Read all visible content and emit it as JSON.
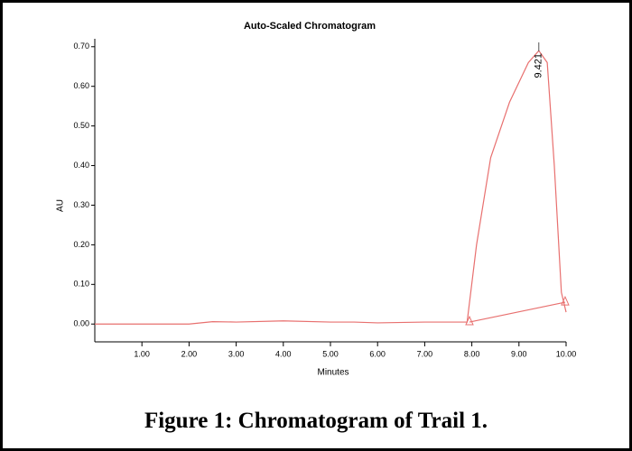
{
  "chart_data": {
    "type": "line",
    "title": "Auto-Scaled Chromatogram",
    "x_label": "Minutes",
    "y_label": "AU",
    "xlim": [
      0,
      10
    ],
    "ylim": [
      -0.045,
      0.72
    ],
    "xticks": [
      {
        "value": 1,
        "label": "1.00"
      },
      {
        "value": 2,
        "label": "2.00"
      },
      {
        "value": 3,
        "label": "3.00"
      },
      {
        "value": 4,
        "label": "4.00"
      },
      {
        "value": 5,
        "label": "5.00"
      },
      {
        "value": 6,
        "label": "6.00"
      },
      {
        "value": 7,
        "label": "7.00"
      },
      {
        "value": 8,
        "label": "8.00"
      },
      {
        "value": 9,
        "label": "9.00"
      },
      {
        "value": 10,
        "label": "10.00"
      }
    ],
    "yticks": [
      {
        "value": 0,
        "label": "0.00"
      },
      {
        "value": 0.1,
        "label": "0.10"
      },
      {
        "value": 0.2,
        "label": "0.20"
      },
      {
        "value": 0.3,
        "label": "0.30"
      },
      {
        "value": 0.4,
        "label": "0.40"
      },
      {
        "value": 0.5,
        "label": "0.50"
      },
      {
        "value": 0.6,
        "label": "0.60"
      },
      {
        "value": 0.7,
        "label": "0.70"
      }
    ],
    "series": [
      {
        "color": "#e8706f",
        "x": [
          0,
          1,
          2,
          2.5,
          3,
          4,
          5,
          5.5,
          6,
          7,
          7.9,
          8.1,
          8.4,
          8.8,
          9.2,
          9.421,
          9.6,
          9.75,
          9.9,
          10
        ],
        "values": [
          0,
          0,
          0,
          0.006,
          0.005,
          0.008,
          0.005,
          0.005,
          0.003,
          0.005,
          0.005,
          0.2,
          0.42,
          0.56,
          0.66,
          0.69,
          0.66,
          0.4,
          0.08,
          0.03
        ]
      },
      {
        "color": "#e8706f",
        "markers": true,
        "x": [
          7.95,
          9.98
        ],
        "values": [
          0.005,
          0.055
        ]
      }
    ],
    "annotations": [
      {
        "label": "9.421",
        "x": 9.421
      }
    ]
  },
  "caption": "Figure 1:  Chromatogram of Trail 1."
}
